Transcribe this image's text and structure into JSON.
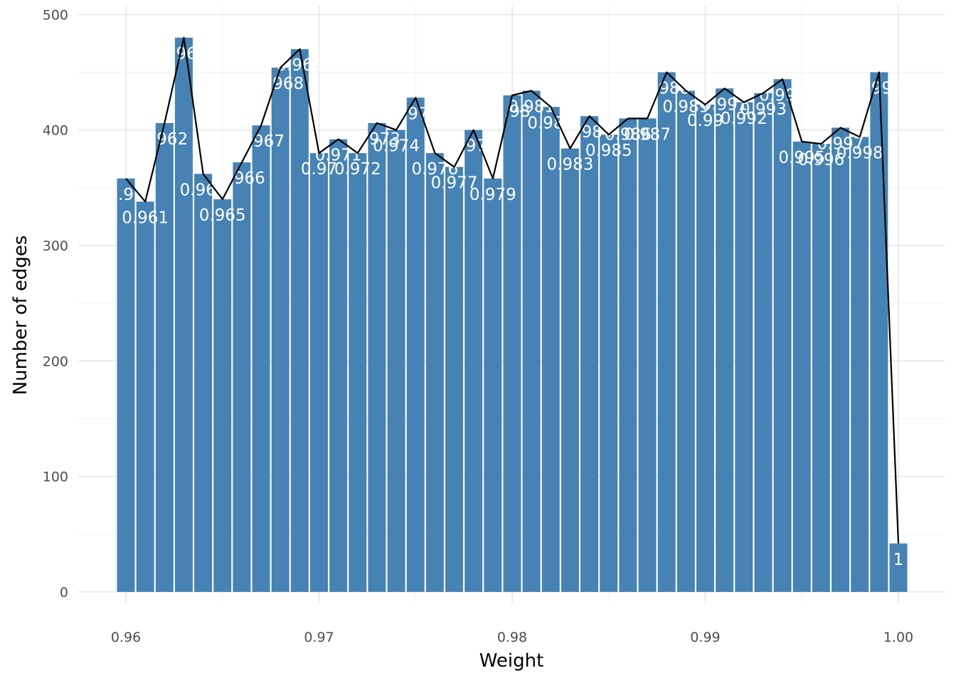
{
  "chart_data": {
    "type": "bar",
    "title": "",
    "xlabel": "Weight",
    "ylabel": "Number of edges",
    "xlim": [
      0.9575,
      1.0025
    ],
    "ylim": [
      0,
      500
    ],
    "x_ticks": [
      0.96,
      0.97,
      0.98,
      0.99,
      1.0
    ],
    "x_tick_labels": [
      "0.96",
      "0.97",
      "0.98",
      "0.99",
      "1.00"
    ],
    "y_ticks": [
      0,
      100,
      200,
      300,
      400,
      500
    ],
    "y_tick_labels": [
      "0",
      "100",
      "200",
      "300",
      "400",
      "500"
    ],
    "grid": true,
    "legend": "none",
    "colors": {
      "bar": "#4682B4",
      "line": "#000000",
      "bar_label": "#FFFFFF",
      "grid": "#EBEBEB"
    },
    "x": [
      0.96,
      0.961,
      0.962,
      0.963,
      0.964,
      0.965,
      0.966,
      0.967,
      0.968,
      0.969,
      0.97,
      0.971,
      0.972,
      0.973,
      0.974,
      0.975,
      0.976,
      0.977,
      0.978,
      0.979,
      0.98,
      0.981,
      0.982,
      0.983,
      0.984,
      0.985,
      0.986,
      0.987,
      0.988,
      0.989,
      0.99,
      0.991,
      0.992,
      0.993,
      0.994,
      0.995,
      0.996,
      0.997,
      0.998,
      0.999,
      1.0
    ],
    "values": [
      358,
      338,
      406,
      480,
      362,
      340,
      372,
      404,
      454,
      470,
      380,
      392,
      380,
      406,
      400,
      428,
      380,
      368,
      400,
      358,
      430,
      434,
      420,
      384,
      412,
      396,
      410,
      410,
      450,
      434,
      422,
      436,
      424,
      432,
      444,
      390,
      388,
      402,
      394,
      450,
      42
    ],
    "bar_labels": [
      "0.96",
      "0.961",
      "0.962",
      "0.963",
      "0.964",
      "0.965",
      "0.966",
      "0.967",
      "0.968",
      "0.969",
      "0.97",
      "0.971",
      "0.972",
      "0.973",
      "0.974",
      "0.975",
      "0.976",
      "0.977",
      "0.978",
      "0.979",
      "0.98",
      "0.981",
      "0.982",
      "0.983",
      "0.984",
      "0.985",
      "0.986",
      "0.987",
      "0.988",
      "0.989",
      "0.99",
      "0.991",
      "0.992",
      "0.993",
      "0.994",
      "0.995",
      "0.996",
      "0.997",
      "0.998",
      "0.999",
      "1"
    ]
  }
}
